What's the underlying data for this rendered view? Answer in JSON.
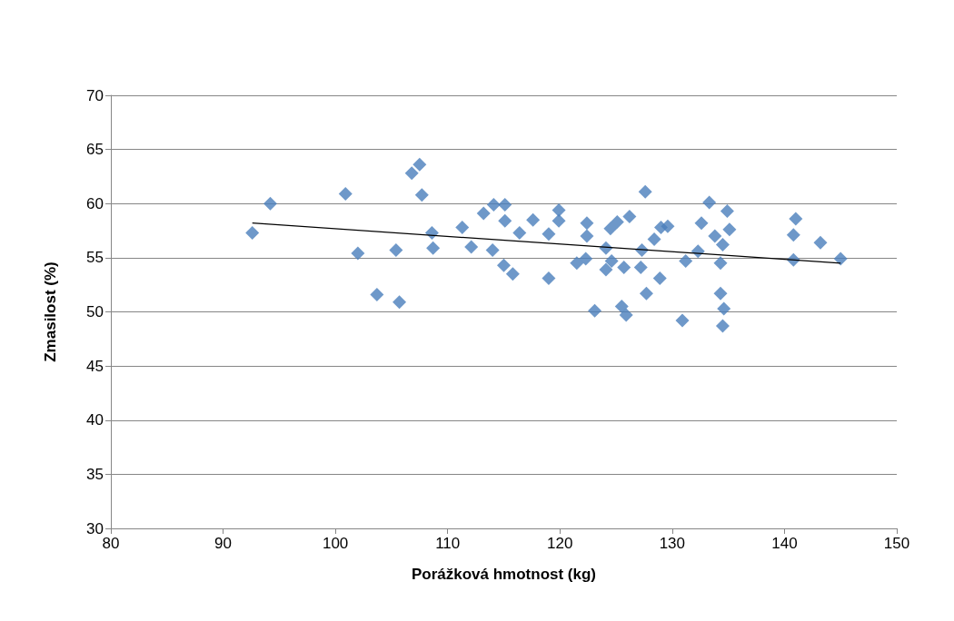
{
  "chart_data": {
    "type": "scatter",
    "xlabel": "Porážková hmotnost (kg)",
    "ylabel": "Zmasilost (%)",
    "xlim": [
      80,
      150
    ],
    "xticks": [
      80,
      90,
      100,
      110,
      120,
      130,
      140,
      150
    ],
    "ylim": [
      30,
      70
    ],
    "yticks": [
      30,
      35,
      40,
      45,
      50,
      55,
      60,
      65,
      70
    ],
    "grid": "y",
    "marker": "diamond",
    "series": [
      {
        "color": "#4a7ebb",
        "x": [
          92.6,
          94.2,
          100.9,
          102.0,
          103.7,
          105.4,
          105.7,
          106.8,
          107.5,
          107.7,
          108.6,
          108.7,
          111.3,
          112.1,
          113.2,
          114.1,
          115.1,
          115.1,
          114.0,
          115.0,
          115.8,
          116.4,
          117.6,
          119.0,
          119.0,
          119.9,
          119.9,
          121.5,
          122.4,
          122.4,
          124.1,
          122.3,
          124.1,
          124.5,
          125.1,
          126.2,
          124.6,
          125.7,
          127.2,
          127.3,
          127.6,
          123.1,
          125.5,
          125.9,
          127.7,
          128.9,
          128.4,
          129.0,
          129.6,
          130.9,
          131.2,
          132.3,
          132.6,
          133.3,
          133.8,
          134.9,
          135.1,
          134.5,
          134.3,
          134.3,
          134.6,
          134.5,
          141.0,
          140.8,
          140.8,
          143.2,
          145.0
        ],
        "values": [
          57.3,
          60.0,
          60.9,
          55.4,
          51.6,
          55.7,
          50.9,
          62.8,
          63.6,
          60.8,
          57.3,
          55.9,
          57.8,
          56.0,
          59.1,
          59.9,
          59.9,
          58.4,
          55.7,
          54.3,
          53.5,
          57.3,
          58.5,
          53.1,
          57.2,
          59.4,
          58.4,
          54.5,
          58.2,
          57.0,
          55.9,
          54.9,
          53.9,
          57.7,
          58.3,
          58.8,
          54.7,
          54.1,
          54.1,
          55.7,
          61.1,
          50.1,
          50.5,
          49.7,
          51.7,
          53.1,
          56.7,
          57.8,
          57.9,
          49.2,
          54.7,
          55.6,
          58.2,
          60.1,
          57.0,
          59.3,
          57.6,
          56.2,
          54.5,
          51.7,
          50.3,
          48.7,
          58.6,
          57.1,
          54.8,
          56.4,
          54.9
        ]
      },
      {
        "type": "line",
        "color": "#000000",
        "marker": "none",
        "x": [
          92.6,
          145.0
        ],
        "values": [
          58.2,
          54.5
        ]
      }
    ]
  }
}
